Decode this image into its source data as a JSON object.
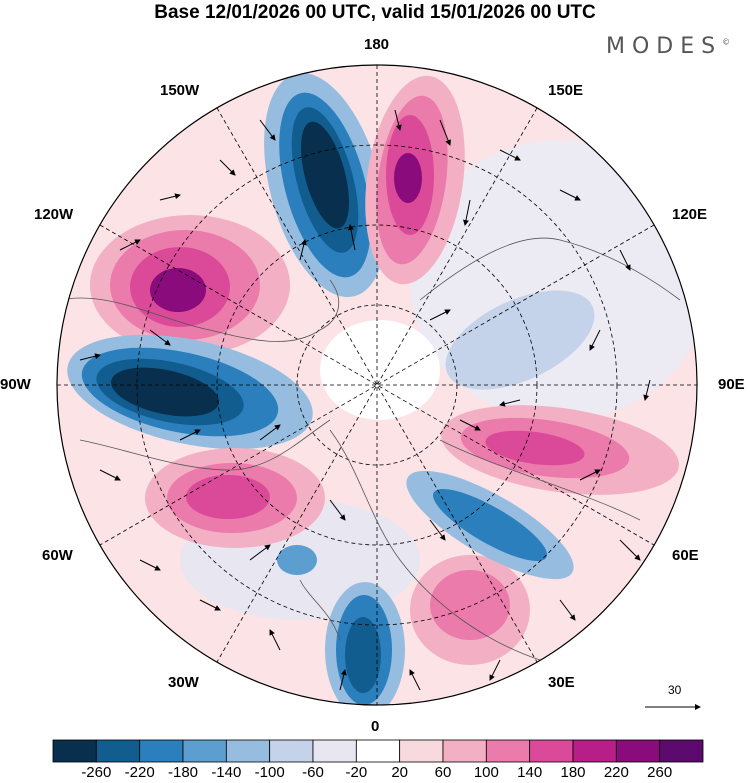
{
  "title": "Base 12/01/2026 00 UTC, valid 15/01/2026 00 UTC",
  "brand": "MODES",
  "brand_mark": "©",
  "longitude_labels": {
    "top": "180",
    "bottom": "0",
    "left": "90W",
    "right": "90E",
    "upper_left_1": "150W",
    "upper_left_2": "120W",
    "upper_right_1": "150E",
    "upper_right_2": "120E",
    "lower_left_1": "60W",
    "lower_left_2": "30W",
    "lower_right_1": "60E",
    "lower_right_2": "30E"
  },
  "wind_reference": {
    "value": "30"
  },
  "colorbar": {
    "ticks": [
      "-260",
      "-220",
      "-180",
      "-140",
      "-100",
      "-60",
      "-20",
      "20",
      "60",
      "100",
      "140",
      "180",
      "220",
      "260"
    ],
    "colors": [
      "#08304e",
      "#115d8f",
      "#2b7fbd",
      "#5c9ed0",
      "#96bde0",
      "#c4d3e9",
      "#e8e6f1",
      "#ffffff",
      "#f8d9de",
      "#f3b0c4",
      "#eb7bab",
      "#db4a98",
      "#b81e88",
      "#8a0c7c",
      "#5c0a6e"
    ]
  },
  "anomaly_centers": [
    {
      "label": "trough-pacific-north",
      "value": -260
    },
    {
      "label": "trough-north-america",
      "value": -260
    },
    {
      "label": "ridge-north-pacific",
      "value": 220
    },
    {
      "label": "ridge-east-pacific",
      "value": 220
    },
    {
      "label": "ridge-north-atlantic",
      "value": 180
    },
    {
      "label": "trough-europe",
      "value": -220
    },
    {
      "label": "ridge-siberia",
      "value": 140
    },
    {
      "label": "ridge-eastern-europe",
      "value": 140
    },
    {
      "label": "trough-central-asia",
      "value": -140
    }
  ]
}
